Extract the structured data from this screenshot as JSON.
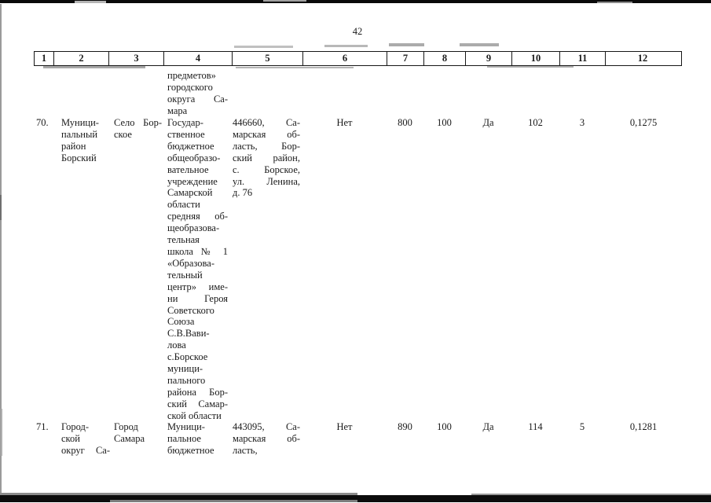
{
  "page": {
    "number": "42"
  },
  "table": {
    "headers": [
      "1",
      "2",
      "3",
      "4",
      "5",
      "6",
      "7",
      "8",
      "9",
      "10",
      "11",
      "12"
    ],
    "carryover_row": {
      "organization_lines": [
        "предметов»",
        "городского",
        "округа Са-",
        "мара"
      ]
    },
    "rows": [
      {
        "num": "70.",
        "district_lines": [
          "Муници-",
          "пальный",
          "район",
          "Борский"
        ],
        "settlement_lines": [
          "Село Бор-",
          "ское"
        ],
        "organization_lines": [
          "Государ-",
          "ственное",
          "бюджетное",
          "общеобразо-",
          "вательное",
          "учреждение",
          "Самарской",
          "области",
          "средняя об-",
          "щеобразова-",
          "тельная",
          "школа № 1",
          "«Образова-",
          "тельный",
          "центр» име-",
          "ни Героя",
          "Советского",
          "Союза",
          "С.В.Вави-",
          "лова",
          "с.Борское",
          "муници-",
          "пального",
          "района Бор-",
          "ский Самар-",
          "ской области"
        ],
        "address_lines": [
          "446660, Са-",
          "марская об-",
          "ласть, Бор-",
          "ский район,",
          "с. Борское,",
          "ул. Ленина,",
          "д. 76"
        ],
        "col6": "Нет",
        "col7": "800",
        "col8": "100",
        "col9": "Да",
        "col10": "102",
        "col11": "3",
        "col12": "0,1275"
      },
      {
        "num": "71.",
        "district_lines": [
          "Город-",
          "ской",
          "округ Са-"
        ],
        "settlement_lines": [
          "Город",
          "Самара"
        ],
        "organization_lines": [
          "Муници-",
          "пальное",
          "бюджетное"
        ],
        "address_lines": [
          "443095, Са-",
          "марская об-",
          "ласть,"
        ],
        "col6": "Нет",
        "col7": "890",
        "col8": "100",
        "col9": "Да",
        "col10": "114",
        "col11": "5",
        "col12": "0,1281"
      }
    ]
  }
}
